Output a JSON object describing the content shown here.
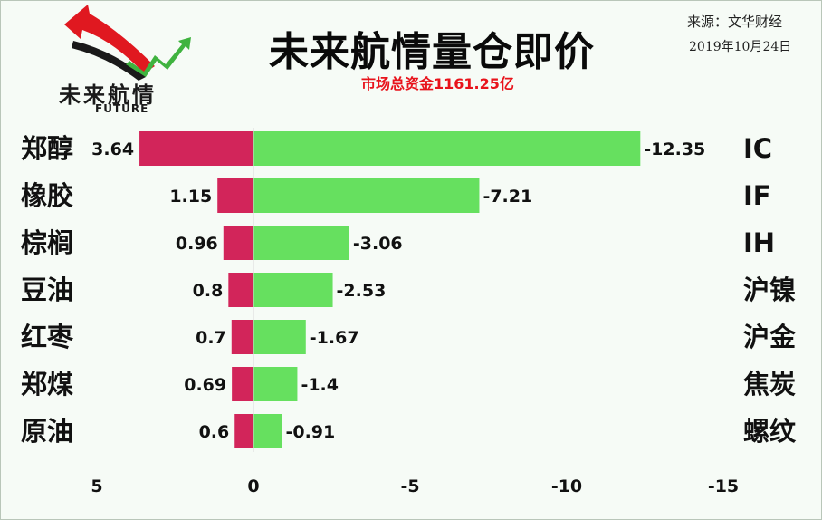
{
  "header": {
    "title": "未来航情量仓即价",
    "subtitle": "市场总资金1161.25亿",
    "source": "来源：文华财经",
    "date": "2019年10月24日"
  },
  "logo": {
    "name_cn": "未来航情",
    "name_en": "FUTURE",
    "icon": "rising-arrows-icon"
  },
  "colors": {
    "positive_bar": "#d2255a",
    "negative_bar": "#66e05f",
    "background": "#f6fbf6",
    "title_accent": "#e8131b"
  },
  "chart_data": {
    "type": "bar",
    "orientation": "horizontal",
    "xlim": [
      5,
      -15
    ],
    "xticks": [
      "5",
      "0",
      "-5",
      "-10",
      "-15"
    ],
    "xtick_values": [
      5,
      0,
      -5,
      -10,
      -15
    ],
    "grid": false,
    "legend": "none",
    "series": [
      {
        "categories": [
          "郑醇",
          "橡胶",
          "棕榈",
          "豆油",
          "红枣",
          "郑煤",
          "原油"
        ],
        "values": [
          3.64,
          1.15,
          0.96,
          0.8,
          0.7,
          0.69,
          0.6
        ],
        "labels": [
          "3.64",
          "1.15",
          "0.96",
          "0.8",
          "0.7",
          "0.69",
          "0.6"
        ]
      },
      {
        "categories": [
          "IC",
          "IF",
          "IH",
          "沪镍",
          "沪金",
          "焦炭",
          "螺纹"
        ],
        "values": [
          -12.35,
          -7.21,
          -3.06,
          -2.53,
          -1.67,
          -1.4,
          -0.91
        ],
        "labels": [
          "-12.35",
          "-7.21",
          "-3.06",
          "-2.53",
          "-1.67",
          "-1.4",
          "-0.91"
        ]
      }
    ]
  }
}
